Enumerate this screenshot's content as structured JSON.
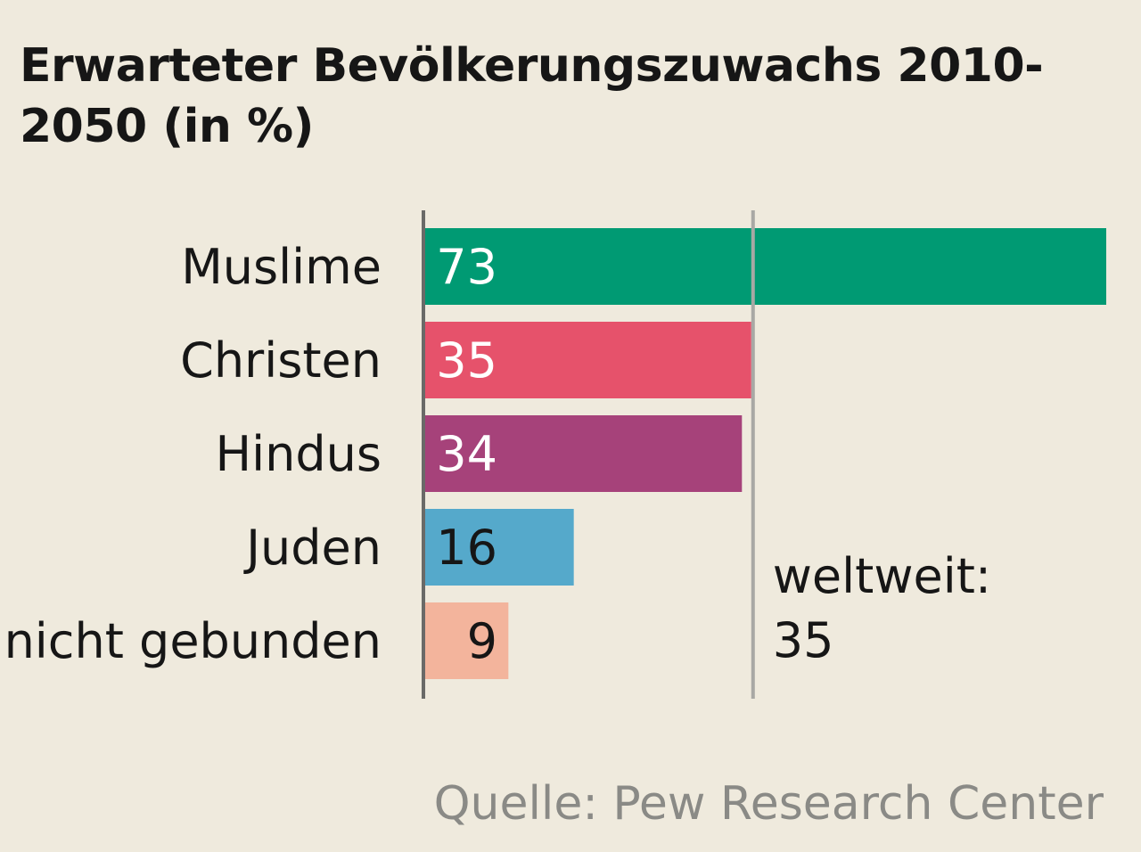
{
  "chart_data": {
    "type": "bar",
    "orientation": "horizontal",
    "title": "Erwarteter Bevölkerungszuwachs 2010-2050 (in %)",
    "categories": [
      "Muslime",
      "Christen",
      "Hindus",
      "Juden",
      "nicht gebunden"
    ],
    "values": [
      73,
      35,
      34,
      16,
      9
    ],
    "value_labels": [
      "73",
      "35",
      "34",
      "16",
      "9"
    ],
    "colors": [
      "#009a73",
      "#e6526b",
      "#a6427a",
      "#55a9cb",
      "#f3b49c"
    ],
    "value_label_colors": [
      "#ffffff",
      "#ffffff",
      "#ffffff",
      "#161616",
      "#161616"
    ],
    "reference_line": {
      "value": 35,
      "label_line1": "weltweit:",
      "label_line2": "35"
    },
    "xlim": [
      0,
      73
    ],
    "grid": false,
    "source": "Quelle: Pew Research Center"
  }
}
